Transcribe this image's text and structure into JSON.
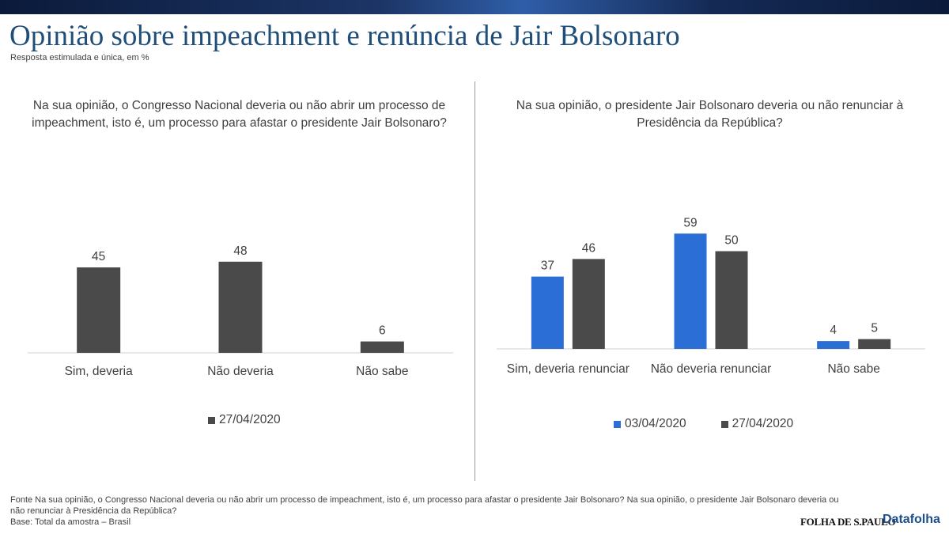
{
  "header": {
    "title": "Opinião sobre impeachment e renúncia de Jair Bolsonaro",
    "subtitle": "Resposta estimulada e única, em %"
  },
  "colors": {
    "blue": "#2b6fd6",
    "dark": "#4a4a4a",
    "title": "#1f4e79"
  },
  "chart_data": [
    {
      "type": "bar",
      "title": "Na sua opinião, o Congresso Nacional  deveria ou não abrir um processo de impeachment, isto é, um processo para afastar o presidente Jair Bolsonaro?",
      "categories": [
        "Sim, deveria",
        "Não deveria",
        "Não sabe"
      ],
      "series": [
        {
          "name": "27/04/2020",
          "color": "#4a4a4a",
          "values": [
            45,
            48,
            6
          ]
        }
      ],
      "ylim": [
        0,
        60
      ],
      "grid": false,
      "legend": "bottom"
    },
    {
      "type": "bar",
      "title": "Na sua opinião, o presidente Jair Bolsonaro deveria ou não renunciar à Presidência da República?",
      "categories": [
        "Sim, deveria renunciar",
        "Não deveria renunciar",
        "Não sabe"
      ],
      "series": [
        {
          "name": "03/04/2020",
          "color": "#2b6fd6",
          "values": [
            37,
            59,
            4
          ]
        },
        {
          "name": "27/04/2020",
          "color": "#4a4a4a",
          "values": [
            46,
            50,
            5
          ]
        }
      ],
      "ylim": [
        0,
        60
      ],
      "grid": false,
      "legend": "bottom"
    }
  ],
  "footer": {
    "source": "Fonte Na sua opinião, o Congresso Nacional  deveria ou não abrir um processo de impeachment, isto é, um processo para afastar o presidente Jair Bolsonaro? Na sua opinião, o presidente Jair Bolsonaro deveria ou não renunciar à Presidência da República?",
    "base": "Base: Total da amostra – Brasil"
  },
  "logos": {
    "folha": "FOLHA DE S.PAULO",
    "datafolha": "Datafolha"
  }
}
